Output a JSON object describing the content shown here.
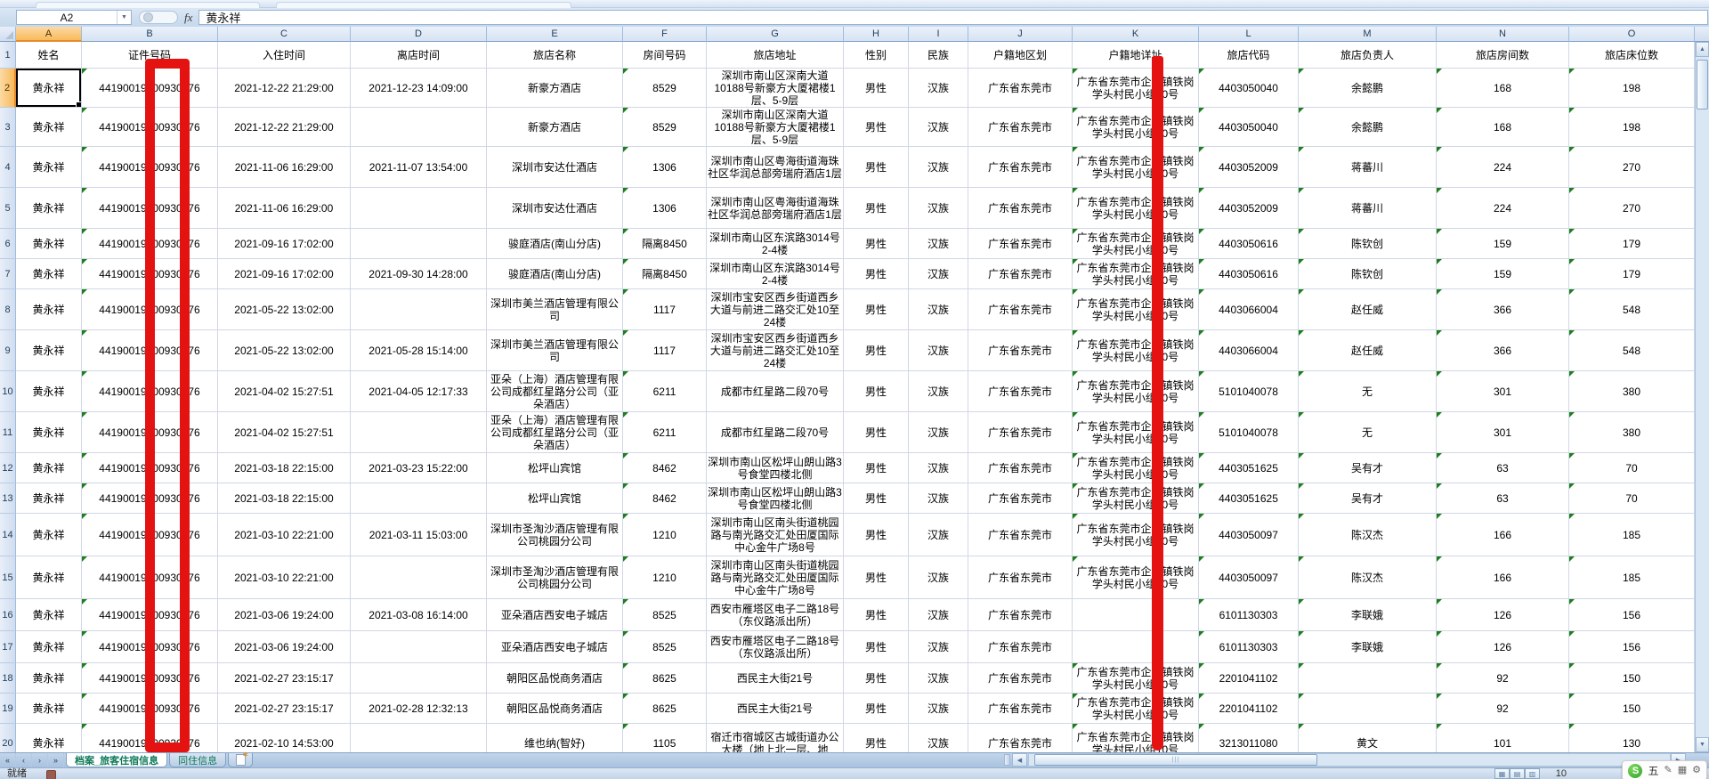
{
  "chrome": {
    "name_box": "A2",
    "fx_label": "fx",
    "formula_value": "黄永祥"
  },
  "sheet": {
    "active_cell": "A2",
    "columns": [
      {
        "letter": "A",
        "label": "姓名"
      },
      {
        "letter": "B",
        "label": "证件号码"
      },
      {
        "letter": "C",
        "label": "入住时间"
      },
      {
        "letter": "D",
        "label": "离店时间"
      },
      {
        "letter": "E",
        "label": "旅店名称"
      },
      {
        "letter": "F",
        "label": "房间号码"
      },
      {
        "letter": "G",
        "label": "旅店地址"
      },
      {
        "letter": "H",
        "label": "性别"
      },
      {
        "letter": "I",
        "label": "民族"
      },
      {
        "letter": "J",
        "label": "户籍地区划"
      },
      {
        "letter": "K",
        "label": "户籍地详址"
      },
      {
        "letter": "L",
        "label": "旅店代码"
      },
      {
        "letter": "M",
        "label": "旅店负责人"
      },
      {
        "letter": "N",
        "label": "旅店房间数"
      },
      {
        "letter": "O",
        "label": "旅店床位数"
      }
    ],
    "rows": [
      {
        "n": "2",
        "cells": [
          "黄永祥",
          "44190019900930376",
          "2021-12-22 21:29:00",
          "2021-12-23 14:09:00",
          "新豪方酒店",
          "8529",
          "深圳市南山区深南大道10188号新豪方大厦裙楼1层、5-9层",
          "男性",
          "汉族",
          "广东省东莞市",
          "广东省东莞市企石镇铁岗学头村民小组10号",
          "4403050040",
          "余懿鹏",
          "168",
          "198"
        ]
      },
      {
        "n": "3",
        "cells": [
          "黄永祥",
          "44190019900930376",
          "2021-12-22 21:29:00",
          "",
          "新豪方酒店",
          "8529",
          "深圳市南山区深南大道10188号新豪方大厦裙楼1层、5-9层",
          "男性",
          "汉族",
          "广东省东莞市",
          "广东省东莞市企石镇铁岗学头村民小组10号",
          "4403050040",
          "余懿鹏",
          "168",
          "198"
        ]
      },
      {
        "n": "4",
        "cells": [
          "黄永祥",
          "44190019900930376",
          "2021-11-06 16:29:00",
          "2021-11-07 13:54:00",
          "深圳市安达仕酒店",
          "1306",
          "深圳市南山区粤海街道海珠社区华润总部旁瑞府酒店1层",
          "男性",
          "汉族",
          "广东省东莞市",
          "广东省东莞市企石镇铁岗学头村民小组10号",
          "4403052009",
          "蒋蕃川",
          "224",
          "270"
        ]
      },
      {
        "n": "5",
        "cells": [
          "黄永祥",
          "44190019900930376",
          "2021-11-06 16:29:00",
          "",
          "深圳市安达仕酒店",
          "1306",
          "深圳市南山区粤海街道海珠社区华润总部旁瑞府酒店1层",
          "男性",
          "汉族",
          "广东省东莞市",
          "广东省东莞市企石镇铁岗学头村民小组10号",
          "4403052009",
          "蒋蕃川",
          "224",
          "270"
        ]
      },
      {
        "n": "6",
        "cells": [
          "黄永祥",
          "44190019900930376",
          "2021-09-16 17:02:00",
          "",
          "骏庭酒店(南山分店)",
          "隔离8450",
          "深圳市南山区东滨路3014号2-4楼",
          "男性",
          "汉族",
          "广东省东莞市",
          "广东省东莞市企石镇铁岗学头村民小组10号",
          "4403050616",
          "陈钦创",
          "159",
          "179"
        ]
      },
      {
        "n": "7",
        "cells": [
          "黄永祥",
          "44190019900930376",
          "2021-09-16 17:02:00",
          "2021-09-30 14:28:00",
          "骏庭酒店(南山分店)",
          "隔离8450",
          "深圳市南山区东滨路3014号2-4楼",
          "男性",
          "汉族",
          "广东省东莞市",
          "广东省东莞市企石镇铁岗学头村民小组10号",
          "4403050616",
          "陈钦创",
          "159",
          "179"
        ]
      },
      {
        "n": "8",
        "cells": [
          "黄永祥",
          "44190019900930376",
          "2021-05-22 13:02:00",
          "",
          "深圳市美兰酒店管理有限公司",
          "1117",
          "深圳市宝安区西乡街道西乡大道与前进二路交汇处10至24楼",
          "男性",
          "汉族",
          "广东省东莞市",
          "广东省东莞市企石镇铁岗学头村民小组10号",
          "4403066004",
          "赵任威",
          "366",
          "548"
        ]
      },
      {
        "n": "9",
        "cells": [
          "黄永祥",
          "44190019900930376",
          "2021-05-22 13:02:00",
          "2021-05-28 15:14:00",
          "深圳市美兰酒店管理有限公司",
          "1117",
          "深圳市宝安区西乡街道西乡大道与前进二路交汇处10至24楼",
          "男性",
          "汉族",
          "广东省东莞市",
          "广东省东莞市企石镇铁岗学头村民小组10号",
          "4403066004",
          "赵任威",
          "366",
          "548"
        ]
      },
      {
        "n": "10",
        "cells": [
          "黄永祥",
          "44190019900930376",
          "2021-04-02 15:27:51",
          "2021-04-05 12:17:33",
          "亚朵（上海）酒店管理有限公司成都红星路分公司（亚朵酒店）",
          "6211",
          "成都市红星路二段70号",
          "男性",
          "汉族",
          "广东省东莞市",
          "广东省东莞市企石镇铁岗学头村民小组10号",
          "5101040078",
          "无",
          "301",
          "380"
        ]
      },
      {
        "n": "11",
        "cells": [
          "黄永祥",
          "44190019900930376",
          "2021-04-02 15:27:51",
          "",
          "亚朵（上海）酒店管理有限公司成都红星路分公司（亚朵酒店）",
          "6211",
          "成都市红星路二段70号",
          "男性",
          "汉族",
          "广东省东莞市",
          "广东省东莞市企石镇铁岗学头村民小组10号",
          "5101040078",
          "无",
          "301",
          "380"
        ]
      },
      {
        "n": "12",
        "cells": [
          "黄永祥",
          "44190019900930376",
          "2021-03-18 22:15:00",
          "2021-03-23 15:22:00",
          "松坪山宾馆",
          "8462",
          "深圳市南山区松坪山朗山路3号食堂四楼北侧",
          "男性",
          "汉族",
          "广东省东莞市",
          "广东省东莞市企石镇铁岗学头村民小组10号",
          "4403051625",
          "吴有才",
          "63",
          "70"
        ]
      },
      {
        "n": "13",
        "cells": [
          "黄永祥",
          "44190019900930376",
          "2021-03-18 22:15:00",
          "",
          "松坪山宾馆",
          "8462",
          "深圳市南山区松坪山朗山路3号食堂四楼北侧",
          "男性",
          "汉族",
          "广东省东莞市",
          "广东省东莞市企石镇铁岗学头村民小组10号",
          "4403051625",
          "吴有才",
          "63",
          "70"
        ]
      },
      {
        "n": "14",
        "cells": [
          "黄永祥",
          "44190019900930376",
          "2021-03-10 22:21:00",
          "2021-03-11 15:03:00",
          "深圳市圣淘沙酒店管理有限公司桃园分公司",
          "1210",
          "深圳市南山区南头街道桃园路与南光路交汇处田厦国际中心金牛广场8号",
          "男性",
          "汉族",
          "广东省东莞市",
          "广东省东莞市企石镇铁岗学头村民小组10号",
          "4403050097",
          "陈汉杰",
          "166",
          "185"
        ]
      },
      {
        "n": "15",
        "cells": [
          "黄永祥",
          "44190019900930376",
          "2021-03-10 22:21:00",
          "",
          "深圳市圣淘沙酒店管理有限公司桃园分公司",
          "1210",
          "深圳市南山区南头街道桃园路与南光路交汇处田厦国际中心金牛广场8号",
          "男性",
          "汉族",
          "广东省东莞市",
          "广东省东莞市企石镇铁岗学头村民小组10号",
          "4403050097",
          "陈汉杰",
          "166",
          "185"
        ]
      },
      {
        "n": "16",
        "cells": [
          "黄永祥",
          "44190019900930376",
          "2021-03-06 19:24:00",
          "2021-03-08 16:14:00",
          "亚朵酒店西安电子城店",
          "8525",
          "西安市雁塔区电子二路18号（东仪路派出所）",
          "男性",
          "汉族",
          "广东省东莞市",
          "",
          "6101130303",
          "李联娥",
          "126",
          "156"
        ]
      },
      {
        "n": "17",
        "cells": [
          "黄永祥",
          "44190019900930376",
          "2021-03-06 19:24:00",
          "",
          "亚朵酒店西安电子城店",
          "8525",
          "西安市雁塔区电子二路18号（东仪路派出所）",
          "男性",
          "汉族",
          "广东省东莞市",
          "",
          "6101130303",
          "李联娥",
          "126",
          "156"
        ]
      },
      {
        "n": "18",
        "cells": [
          "黄永祥",
          "44190019900930376",
          "2021-02-27 23:15:17",
          "",
          "朝阳区品悦商务酒店",
          "8625",
          "西民主大街21号",
          "男性",
          "汉族",
          "广东省东莞市",
          "广东省东莞市企石镇铁岗学头村民小组10号",
          "2201041102",
          "",
          "92",
          "150"
        ]
      },
      {
        "n": "19",
        "cells": [
          "黄永祥",
          "44190019900930376",
          "2021-02-27 23:15:17",
          "2021-02-28 12:32:13",
          "朝阳区品悦商务酒店",
          "8625",
          "西民主大街21号",
          "男性",
          "汉族",
          "广东省东莞市",
          "广东省东莞市企石镇铁岗学头村民小组10号",
          "2201041102",
          "",
          "92",
          "150"
        ]
      },
      {
        "n": "20",
        "cells": [
          "黄永祥",
          "44190019900930376",
          "2021-02-10 14:53:00",
          "",
          "维也纳(智好)",
          "1105",
          "宿迁市宿城区古城街道办公大楼（地上北一层、地",
          "男性",
          "汉族",
          "广东省东莞市",
          "广东省东莞市企石镇铁岗学头村民小组10号",
          "3213011080",
          "黄文",
          "101",
          "130"
        ]
      }
    ]
  },
  "tabs": {
    "nav_first": "«",
    "nav_prev": "‹",
    "nav_next": "›",
    "nav_last": "»",
    "items": [
      {
        "label": "档案_旅客住宿信息",
        "active": true
      },
      {
        "label": "同住信息",
        "active": false
      }
    ]
  },
  "status": {
    "ready_label": "就绪",
    "zoom_visible_text": "10"
  },
  "ime": {
    "logo_letter": "S",
    "mode_label": "五"
  },
  "colors": {
    "annotation_red": "#e51212",
    "flag_green": "#1e7e1e",
    "tab_text_green": "#0c7a57",
    "selection_orange": "#f8ba5c"
  }
}
